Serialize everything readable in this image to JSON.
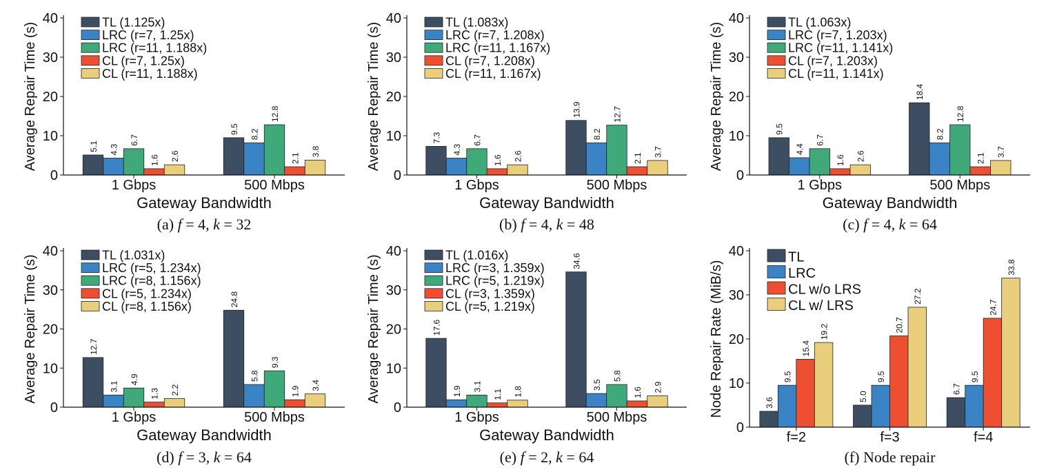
{
  "colors": {
    "TL": "#3d4e63",
    "LRC": "#3a83c4",
    "LRC2": "#3fa97a",
    "CL": "#ee4f30",
    "CL2": "#e9ce7c",
    "CLLRS": "#e9ce7c"
  },
  "chart_data": [
    {
      "type": "bar",
      "caption_prefix": "(a)",
      "f": "4",
      "k": "32",
      "xlabel": "Gateway Bandwidth",
      "ylabel": "Average Repair Time (s)",
      "ylim": [
        0,
        40
      ],
      "yticks": [
        0,
        10,
        20,
        30,
        40
      ],
      "categories": [
        "1 Gbps",
        "500 Mbps"
      ],
      "series": [
        {
          "name": "TL (1.125x)",
          "color_key": "TL",
          "values": [
            5.1,
            9.5
          ]
        },
        {
          "name": "LRC (r=7, 1.25x)",
          "color_key": "LRC",
          "values": [
            4.3,
            8.2
          ]
        },
        {
          "name": "LRC (r=11, 1.188x)",
          "color_key": "LRC2",
          "values": [
            6.7,
            12.8
          ]
        },
        {
          "name": "CL (r=7, 1.25x)",
          "color_key": "CL",
          "values": [
            1.6,
            2.1
          ]
        },
        {
          "name": "CL (r=11, 1.188x)",
          "color_key": "CL2",
          "values": [
            2.6,
            3.8
          ]
        }
      ]
    },
    {
      "type": "bar",
      "caption_prefix": "(b)",
      "f": "4",
      "k": "48",
      "xlabel": "Gateway Bandwidth",
      "ylabel": "Average Repair Time (s)",
      "ylim": [
        0,
        40
      ],
      "yticks": [
        0,
        10,
        20,
        30,
        40
      ],
      "categories": [
        "1 Gbps",
        "500 Mbps"
      ],
      "series": [
        {
          "name": "TL (1.083x)",
          "color_key": "TL",
          "values": [
            7.3,
            13.9
          ]
        },
        {
          "name": "LRC (r=7, 1.208x)",
          "color_key": "LRC",
          "values": [
            4.3,
            8.2
          ]
        },
        {
          "name": "LRC (r=11, 1.167x)",
          "color_key": "LRC2",
          "values": [
            6.7,
            12.7
          ]
        },
        {
          "name": "CL (r=7, 1.208x)",
          "color_key": "CL",
          "values": [
            1.6,
            2.1
          ]
        },
        {
          "name": "CL (r=11, 1.167x)",
          "color_key": "CL2",
          "values": [
            2.6,
            3.7
          ]
        }
      ]
    },
    {
      "type": "bar",
      "caption_prefix": "(c)",
      "f": "4",
      "k": "64",
      "xlabel": "Gateway Bandwidth",
      "ylabel": "Average Repair Time (s)",
      "ylim": [
        0,
        40
      ],
      "yticks": [
        0,
        10,
        20,
        30,
        40
      ],
      "categories": [
        "1 Gbps",
        "500 Mbps"
      ],
      "series": [
        {
          "name": "TL (1.063x)",
          "color_key": "TL",
          "values": [
            9.5,
            18.4
          ]
        },
        {
          "name": "LRC (r=7, 1.203x)",
          "color_key": "LRC",
          "values": [
            4.4,
            8.2
          ]
        },
        {
          "name": "LRC (r=11, 1.141x)",
          "color_key": "LRC2",
          "values": [
            6.7,
            12.8
          ]
        },
        {
          "name": "CL (r=7, 1.203x)",
          "color_key": "CL",
          "values": [
            1.6,
            2.1
          ]
        },
        {
          "name": "CL (r=11, 1.141x)",
          "color_key": "CL2",
          "values": [
            2.6,
            3.7
          ]
        }
      ]
    },
    {
      "type": "bar",
      "caption_prefix": "(d)",
      "f": "3",
      "k": "64",
      "xlabel": "Gateway Bandwidth",
      "ylabel": "Average Repair Time (s)",
      "ylim": [
        0,
        40
      ],
      "yticks": [
        0,
        10,
        20,
        30,
        40
      ],
      "categories": [
        "1 Gbps",
        "500 Mbps"
      ],
      "series": [
        {
          "name": "TL (1.031x)",
          "color_key": "TL",
          "values": [
            12.7,
            24.8
          ]
        },
        {
          "name": "LRC (r=5, 1.234x)",
          "color_key": "LRC",
          "values": [
            3.1,
            5.8
          ]
        },
        {
          "name": "LRC (r=8, 1.156x)",
          "color_key": "LRC2",
          "values": [
            4.9,
            9.3
          ]
        },
        {
          "name": "CL (r=5, 1.234x)",
          "color_key": "CL",
          "values": [
            1.3,
            1.9
          ]
        },
        {
          "name": "CL (r=8, 1.156x)",
          "color_key": "CL2",
          "values": [
            2.2,
            3.4
          ]
        }
      ]
    },
    {
      "type": "bar",
      "caption_prefix": "(e)",
      "f": "2",
      "k": "64",
      "xlabel": "Gateway Bandwidth",
      "ylabel": "Average Repair Time (s)",
      "ylim": [
        0,
        40
      ],
      "yticks": [
        0,
        10,
        20,
        30,
        40
      ],
      "categories": [
        "1 Gbps",
        "500 Mbps"
      ],
      "series": [
        {
          "name": "TL (1.016x)",
          "color_key": "TL",
          "values": [
            17.6,
            34.6
          ]
        },
        {
          "name": "LRC (r=3, 1.359x)",
          "color_key": "LRC",
          "values": [
            1.9,
            3.5
          ]
        },
        {
          "name": "LRC (r=5, 1.219x)",
          "color_key": "LRC2",
          "values": [
            3.1,
            5.8
          ]
        },
        {
          "name": "CL (r=3, 1.359x)",
          "color_key": "CL",
          "values": [
            1.1,
            1.6
          ]
        },
        {
          "name": "CL (r=5, 1.219x)",
          "color_key": "CL2",
          "values": [
            1.8,
            2.9
          ]
        }
      ]
    },
    {
      "type": "bar",
      "caption": "(f) Node repair",
      "xlabel": "",
      "ylabel": "Node Repair Rate (MiB/s)",
      "ylim": [
        0,
        40
      ],
      "yticks": [
        0,
        10,
        20,
        30,
        40
      ],
      "categories": [
        "f=2",
        "f=3",
        "f=4"
      ],
      "series": [
        {
          "name": "TL",
          "color_key": "TL",
          "values": [
            3.6,
            5.0,
            6.7
          ]
        },
        {
          "name": "LRC",
          "color_key": "LRC",
          "values": [
            9.5,
            9.5,
            9.5
          ]
        },
        {
          "name": "CL w/o LRS",
          "color_key": "CL",
          "values": [
            15.4,
            20.7,
            24.7
          ]
        },
        {
          "name": "CL w/ LRS",
          "color_key": "CLLRS",
          "values": [
            19.2,
            27.2,
            33.8
          ]
        }
      ]
    }
  ]
}
